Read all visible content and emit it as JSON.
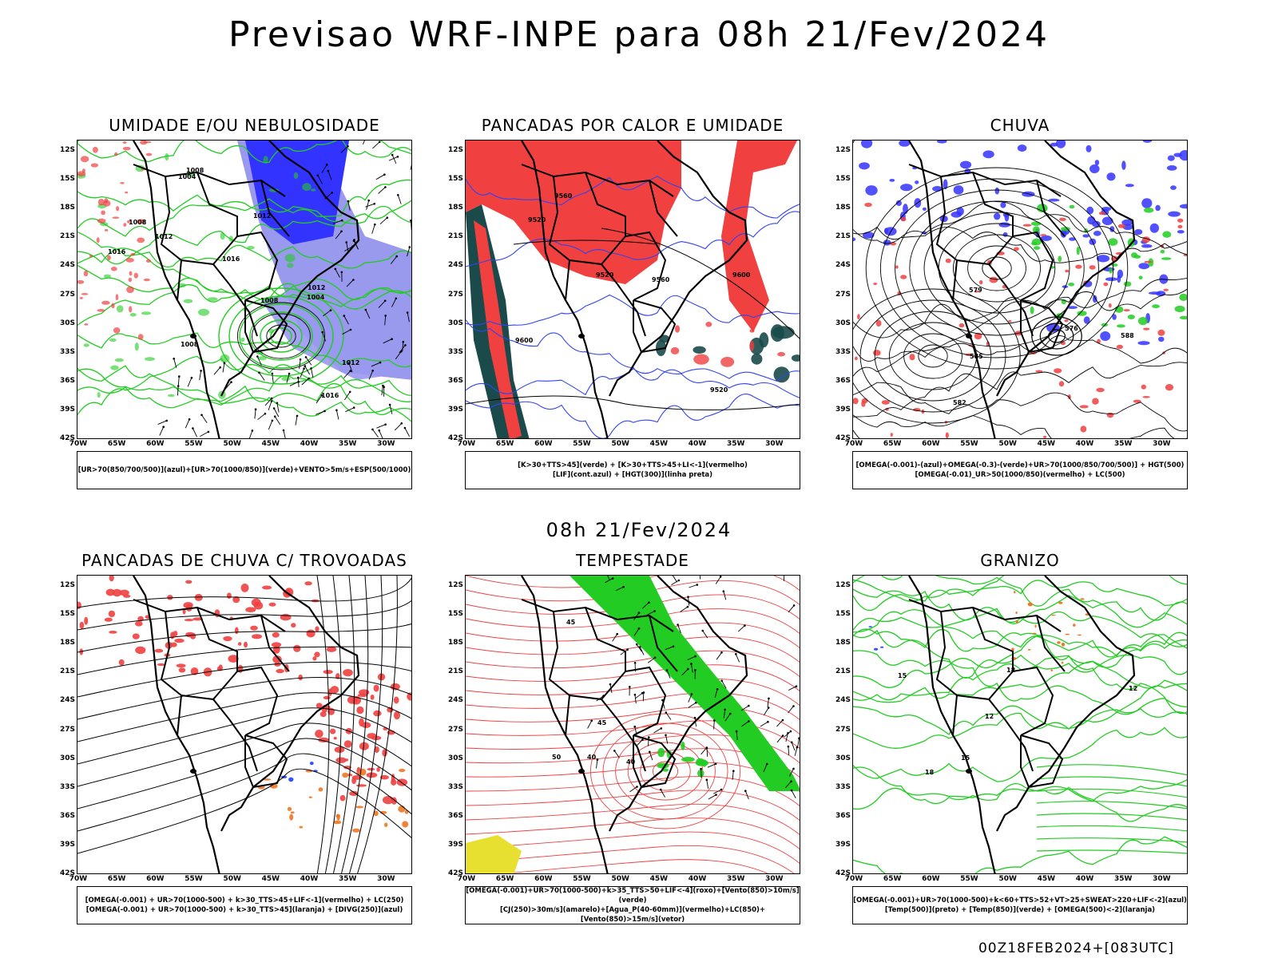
{
  "title": "Previsao WRF-INPE  para 08h 21/Fev/2024",
  "mid_title": "08h 21/Fev/2024",
  "footer": "00Z18FEB2024+[083UTC]",
  "lat_labels": [
    "12S",
    "15S",
    "18S",
    "21S",
    "24S",
    "27S",
    "30S",
    "33S",
    "36S",
    "39S",
    "42S"
  ],
  "lon_labels": [
    "70W",
    "65W",
    "60W",
    "55W",
    "50W",
    "45W",
    "40W",
    "35W",
    "30W"
  ],
  "colors": {
    "blue": "#3333ff",
    "lightblue": "#9999ee",
    "green": "#22cc22",
    "red": "#f04040",
    "orange": "#ee7722",
    "yellow": "#e8e030",
    "darkteal": "#1a4a4a"
  },
  "panels": [
    {
      "id": "umidade",
      "title": "UMIDADE E/OU NEBULOSIDADE",
      "legend": [
        "[UR>70(850/700/500)](azul)+[UR>70(1000/850)](verde)+VENTO>5m/s+ESP(500/1000)"
      ],
      "contour_labels": [
        "1012",
        "1008",
        "1016",
        "1004",
        "1008",
        "1012",
        "1016",
        "1008",
        "1012",
        "1004",
        "1008",
        "1012",
        "1016"
      ]
    },
    {
      "id": "pancadas-calor",
      "title": "PANCADAS POR CALOR E UMIDADE",
      "legend": [
        "[K>30+TTS>45](verde) + [K>30+TTS>45+LI<-1](vermelho)",
        "[LIF](cont.azul) + [HGT(300)](linha preta)"
      ],
      "contour_labels": [
        "9560",
        "9600",
        "9520",
        "9520",
        "9600",
        "9520",
        "9560"
      ]
    },
    {
      "id": "chuva",
      "title": "CHUVA",
      "legend": [
        "[OMEGA(-0.001)-(azul)+OMEGA(-0.3)-(verde)+UR>70(1000/850/700/500)] + HGT(500)",
        "[OMEGA(-0.01)_UR>50(1000/850)(vermelho) + LC(500)"
      ],
      "contour_labels": [
        "582",
        "576",
        "579",
        "585",
        "588"
      ]
    },
    {
      "id": "pancadas-trovoadas",
      "title": "PANCADAS DE CHUVA C/ TROVOADAS",
      "legend": [
        "[OMEGA(-0.001) + UR>70(1000-500) + k>30_TTS>45+LIF<-1](vermelho) + LC(250)",
        "[OMEGA(-0.001) + UR>70(1000-500) + k>30_TTS>45](laranja) + [DIVG(250)](azul)"
      ],
      "contour_labels": []
    },
    {
      "id": "tempestade",
      "title": "TEMPESTADE",
      "legend": [
        "[OMEGA(-0.001)+UR>70(1000-500)+k>35_TTS>50+LIF<-4](roxo)+[Vento(850)>10m/s](verde)",
        "[CJ(250)>30m/s](amarelo)+[Agua_P(40-60mm)](vermelho)+LC(850)+[Vento(850)>15m/s](vetor)"
      ],
      "contour_labels": [
        "40",
        "45",
        "50",
        "45",
        "40"
      ]
    },
    {
      "id": "granizo",
      "title": "GRANIZO",
      "legend": [
        "[OMEGA(-0.001)+UR>70(1000-500)+k<60+TTS>52+VT>25+SWEAT>220+LIF<-2](azul)",
        "[Temp(500)](preto) + [Temp(850)](verde) + [OMEGA(500)<-2](laranja)"
      ],
      "contour_labels": [
        "12",
        "15",
        "18",
        "12",
        "15",
        "18"
      ]
    }
  ]
}
